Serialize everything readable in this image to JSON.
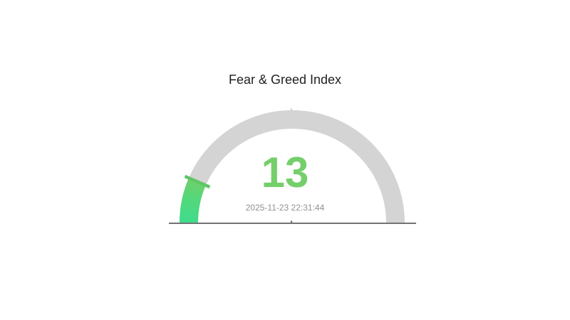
{
  "chart_data": {
    "type": "gauge",
    "title": "Fear & Greed Index",
    "value": 13,
    "min": 0,
    "max": 100,
    "timestamp": "2025-11-23 22:31:44",
    "legend_position": "none",
    "grid": false,
    "colors": {
      "title_text": "#1f1f1f",
      "value_text": "#74cf6b",
      "timestamp_text": "#919191",
      "track_arc": "#d4d4d4",
      "value_arc_gradient": [
        "#3fdc8c",
        "#52d87b",
        "#6ed06b"
      ],
      "threshold_tick": "#5ec766",
      "axis_line": "#737373",
      "axis_top_tick": "#cccccc",
      "background": "#ffffff"
    }
  }
}
